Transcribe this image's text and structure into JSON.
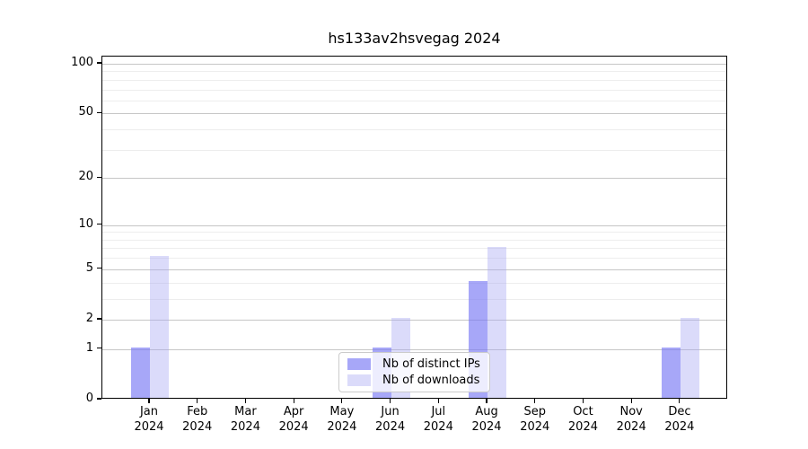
{
  "title": "hs133av2hsvegag 2024",
  "legend": {
    "items": [
      {
        "label": "Nb of distinct IPs",
        "color": "rgba(120,120,245,0.65)"
      },
      {
        "label": "Nb of downloads",
        "color": "rgba(165,165,243,0.40)"
      }
    ]
  },
  "chart_data": {
    "type": "bar",
    "title": "hs133av2hsvegag 2024",
    "categories": [
      "Jan 2024",
      "Feb 2024",
      "Mar 2024",
      "Apr 2024",
      "May 2024",
      "Jun 2024",
      "Jul 2024",
      "Aug 2024",
      "Sep 2024",
      "Oct 2024",
      "Nov 2024",
      "Dec 2024"
    ],
    "series": [
      {
        "name": "Nb of distinct IPs",
        "color": "rgba(120,120,245,0.65)",
        "values": [
          1,
          0,
          0,
          0,
          0,
          1,
          0,
          4,
          0,
          0,
          0,
          1
        ]
      },
      {
        "name": "Nb of downloads",
        "color": "rgba(165,165,243,0.40)",
        "values": [
          6,
          0,
          0,
          0,
          0,
          2,
          0,
          7,
          0,
          0,
          0,
          2
        ]
      }
    ],
    "xlabel": "",
    "ylabel": "",
    "y_scale": "log1p",
    "y_ticks": [
      0,
      1,
      2,
      5,
      10,
      20,
      50,
      100
    ],
    "y_minor_ticks": [
      3,
      4,
      6,
      7,
      8,
      9,
      30,
      40,
      60,
      70,
      80,
      90
    ],
    "ylim": [
      0,
      112
    ],
    "grid": true,
    "legend_position": "lower center"
  },
  "colors": {
    "major_grid": "#c6c6c6",
    "minor_grid": "#ededed",
    "spine": "#000000",
    "text": "#000000"
  }
}
